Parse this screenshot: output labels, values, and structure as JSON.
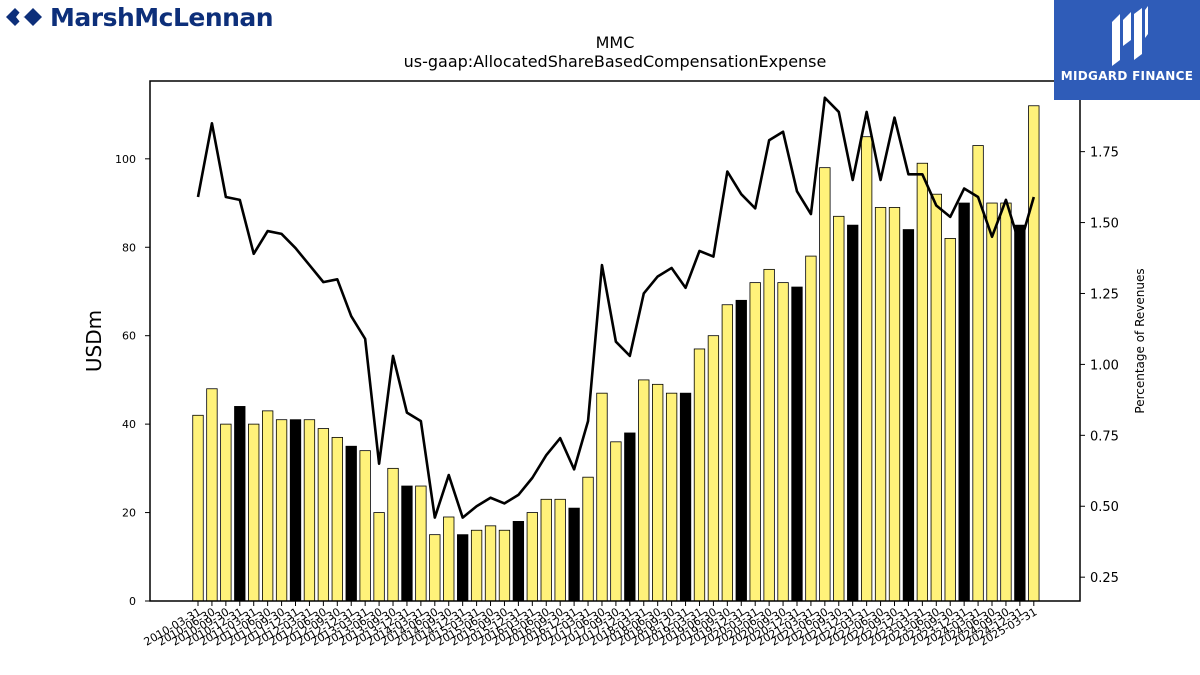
{
  "logos": {
    "left_brand": "MarshMcLennan",
    "right_brand": "MIDGARD FINANCE"
  },
  "colors": {
    "bar_default": "#fff27a",
    "bar_highlight": "#000000",
    "line": "#000000",
    "midgard_bg": "#2f5cb8",
    "mmc_navy": "#0d2f7a"
  },
  "chart_data": {
    "type": "bar",
    "title": "MMC",
    "subtitle": "us-gaap:AllocatedShareBasedCompensationExpense",
    "ylabel": "USDm",
    "y2label": "Percentage of Revenues",
    "ylim": [
      0,
      117.6
    ],
    "y2lim": [
      0.166,
      1.999
    ],
    "yticks": [
      0,
      20,
      40,
      60,
      80,
      100
    ],
    "y2ticks": [
      "0.25",
      "0.50",
      "0.75",
      "1.00",
      "1.25",
      "1.50",
      "1.75"
    ],
    "grid": false,
    "categories": [
      "2010-03-31",
      "2010-06-30",
      "2010-09-30",
      "2010-12-31",
      "2011-03-31",
      "2011-06-30",
      "2011-09-30",
      "2011-12-31",
      "2012-03-31",
      "2012-06-30",
      "2012-09-30",
      "2012-12-31",
      "2013-03-31",
      "2013-06-30",
      "2013-09-30",
      "2013-12-31",
      "2014-03-31",
      "2014-06-30",
      "2014-09-30",
      "2014-12-31",
      "2015-03-31",
      "2015-06-30",
      "2015-09-30",
      "2015-12-31",
      "2016-03-31",
      "2016-06-30",
      "2016-09-30",
      "2016-12-31",
      "2017-03-31",
      "2017-06-30",
      "2017-09-30",
      "2017-12-31",
      "2018-03-31",
      "2018-06-30",
      "2018-09-30",
      "2018-12-31",
      "2019-03-31",
      "2019-06-30",
      "2019-09-30",
      "2019-12-31",
      "2020-03-31",
      "2020-06-30",
      "2020-09-30",
      "2020-12-31",
      "2021-03-31",
      "2021-06-30",
      "2021-09-30",
      "2021-12-31",
      "2022-03-31",
      "2022-06-30",
      "2022-09-30",
      "2022-12-31",
      "2023-03-31",
      "2023-06-30",
      "2023-09-30",
      "2023-12-31",
      "2024-03-31",
      "2024-06-30",
      "2024-09-30",
      "2024-12-31",
      "2025-03-31"
    ],
    "series": [
      {
        "name": "USDm",
        "type": "bar",
        "values": [
          42,
          48,
          40,
          44,
          40,
          43,
          41,
          41,
          41,
          39,
          37,
          35,
          34,
          20,
          30,
          26,
          26,
          15,
          19,
          15,
          16,
          17,
          16,
          18,
          20,
          23,
          23,
          21,
          28,
          47,
          36,
          38,
          50,
          49,
          47,
          47,
          57,
          60,
          67,
          68,
          72,
          75,
          72,
          71,
          78,
          98,
          87,
          85,
          105,
          89,
          89,
          84,
          99,
          92,
          82,
          90,
          103,
          90,
          90,
          85,
          112
        ],
        "highlight": [
          false,
          false,
          false,
          true,
          false,
          false,
          false,
          true,
          false,
          false,
          false,
          true,
          false,
          false,
          false,
          true,
          false,
          false,
          false,
          true,
          false,
          false,
          false,
          true,
          false,
          false,
          false,
          true,
          false,
          false,
          false,
          true,
          false,
          false,
          false,
          true,
          false,
          false,
          false,
          true,
          false,
          false,
          false,
          true,
          false,
          false,
          false,
          true,
          false,
          false,
          false,
          true,
          false,
          false,
          false,
          true,
          false,
          false,
          false,
          true,
          false
        ]
      },
      {
        "name": "Percentage of Revenues",
        "type": "line",
        "axis": "right",
        "values": [
          1.59,
          1.85,
          1.59,
          1.58,
          1.39,
          1.47,
          1.46,
          1.41,
          1.35,
          1.29,
          1.3,
          1.17,
          1.09,
          0.65,
          1.03,
          0.83,
          0.8,
          0.46,
          0.61,
          0.46,
          0.5,
          0.53,
          0.51,
          0.54,
          0.6,
          0.68,
          0.74,
          0.63,
          0.8,
          1.35,
          1.08,
          1.03,
          1.25,
          1.31,
          1.34,
          1.27,
          1.4,
          1.38,
          1.68,
          1.6,
          1.55,
          1.79,
          1.82,
          1.61,
          1.53,
          1.94,
          1.89,
          1.65,
          1.89,
          1.65,
          1.87,
          1.67,
          1.67,
          1.56,
          1.52,
          1.62,
          1.59,
          1.45,
          1.58,
          1.42,
          1.59
        ]
      }
    ]
  }
}
